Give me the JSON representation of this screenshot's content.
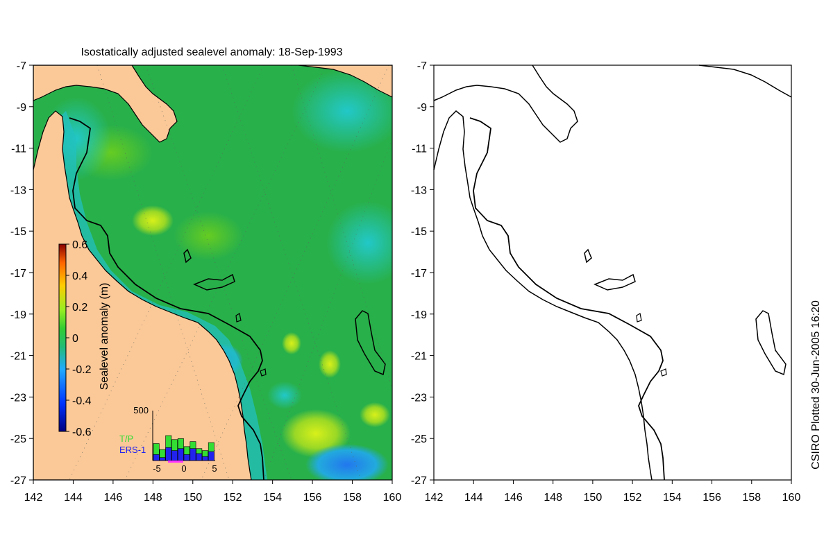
{
  "title": "Isostatically adjusted sealevel anomaly: 18-Sep-1993",
  "credit": "CSIRO Plotted 30-Jun-2005 16:20",
  "axes": {
    "x_ticks": [
      "142",
      "144",
      "146",
      "148",
      "150",
      "152",
      "154",
      "156",
      "158",
      "160"
    ],
    "y_ticks": [
      "-7",
      "-9",
      "-11",
      "-13",
      "-15",
      "-17",
      "-19",
      "-21",
      "-23",
      "-25",
      "-27"
    ]
  },
  "colorbar": {
    "label": "Sealevel anomaly (m)",
    "ticks": [
      "0.6",
      "0.4",
      "0.2",
      "0",
      "-0.2",
      "-0.4",
      "-0.6"
    ],
    "range": [
      -0.6,
      0.6
    ]
  },
  "histogram": {
    "y_tick": "500",
    "x_ticks": [
      "-5",
      "0",
      "5"
    ],
    "legend": [
      {
        "label": "T/P",
        "color": "#33dd33"
      },
      {
        "label": "ERS-1",
        "color": "#2222ee"
      }
    ],
    "tp": [
      170,
      110,
      250,
      210,
      220,
      140,
      190,
      120,
      100,
      180
    ],
    "ers1": [
      60,
      30,
      130,
      100,
      120,
      60,
      120,
      70,
      40,
      90
    ]
  },
  "colors": {
    "land": "#fbc898",
    "ocean": "#28b04a",
    "coast": "#000000"
  }
}
